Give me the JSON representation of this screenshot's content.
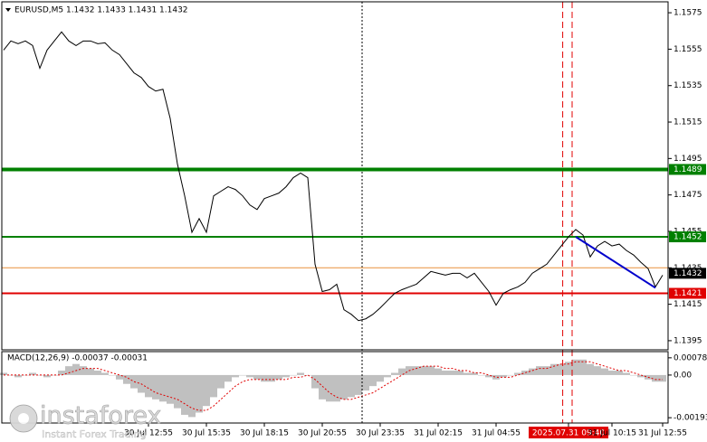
{
  "chart_data": {
    "type": "line",
    "header": "EURUSD,M5  1.1432 1.1433 1.1431 1.1432",
    "categories": [
      null,
      null,
      null,
      null,
      null,
      null,
      null,
      null,
      null,
      null,
      null,
      null,
      null,
      null,
      null,
      null,
      null,
      null,
      null,
      null,
      "30 Jul 12:55",
      null,
      null,
      null,
      null,
      null,
      null,
      null,
      "30 Jul 15:35",
      null,
      null,
      null,
      null,
      null,
      null,
      null,
      "30 Jul 18:15",
      null,
      null,
      null,
      null,
      null,
      null,
      null,
      "30 Jul 20:55",
      null,
      null,
      null,
      null,
      null,
      null,
      null,
      "30 Jul 23:35",
      null,
      null,
      null,
      null,
      null,
      null,
      null,
      "31 Jul 02:15",
      null,
      null,
      null,
      null,
      null,
      null,
      null,
      "31 Jul 04:55",
      null,
      null,
      null,
      null,
      null,
      null,
      null,
      null,
      null,
      "2025.07.31 09:40",
      null,
      null,
      null,
      null,
      null,
      "31 Jul 10:15",
      null,
      null,
      null,
      null,
      null,
      null,
      "31 Jul 12:55"
    ],
    "series": [
      {
        "name": "EURUSD,M5",
        "color": "#000000",
        "values": [
          1.15545,
          1.15595,
          1.1558,
          1.15595,
          1.1557,
          1.15445,
          1.15545,
          1.15595,
          1.15645,
          1.15595,
          1.1557,
          1.15595,
          1.15595,
          1.1558,
          1.15585,
          1.15545,
          1.1552,
          1.1547,
          1.1542,
          1.15395,
          1.15345,
          1.1532,
          1.1533,
          1.1517,
          1.1492,
          1.14745,
          1.14545,
          1.1462,
          1.14545,
          1.14745,
          1.1477,
          1.14795,
          1.1478,
          1.14745,
          1.14695,
          1.1467,
          1.1473,
          1.14745,
          1.1476,
          1.14795,
          1.14845,
          1.1487,
          1.14845,
          1.1437,
          1.1422,
          1.1423,
          1.1426,
          1.1412,
          1.14095,
          1.1406,
          1.1407,
          1.14095,
          1.1413,
          1.1417,
          1.1421,
          1.1423,
          1.14245,
          1.1426,
          1.14295,
          1.1433,
          1.1432,
          1.1431,
          1.1432,
          1.1432,
          1.14295,
          1.1432,
          1.1427,
          1.1422,
          1.14145,
          1.1421,
          1.1423,
          1.14245,
          1.1427,
          1.1432,
          1.14345,
          1.1437,
          1.1442,
          1.1447,
          1.1452,
          1.1456,
          1.1453,
          1.1441,
          1.1447,
          1.14495,
          1.1447,
          1.1448,
          1.14445,
          1.1442,
          1.1438,
          1.14345,
          1.14245,
          1.1431
        ]
      }
    ],
    "ylim": [
      1.139,
      1.1581
    ],
    "yticks": [
      1.1575,
      1.1555,
      1.1535,
      1.1515,
      1.1495,
      1.1475,
      1.1455,
      1.1435,
      1.1415,
      1.1395
    ],
    "levels": [
      {
        "value": 1.1435,
        "color": "#e8903a",
        "width": 1
      },
      {
        "value": 1.1489,
        "color": "#008000",
        "width": 4,
        "label": "1.1489"
      },
      {
        "value": 1.1452,
        "color": "#008000",
        "width": 2,
        "label": "1.1452"
      },
      {
        "value": 1.1421,
        "color": "#e00000",
        "width": 2,
        "label": "1.1421"
      },
      {
        "value": 1.1432,
        "color": "#000000",
        "width": 0,
        "label": "1.1432"
      }
    ],
    "trendline": {
      "color": "#0000cc",
      "x": [
        79,
        90
      ],
      "values": [
        1.1452,
        1.1424
      ]
    },
    "vlines": [
      {
        "x": 49.5,
        "color": "#000000",
        "style": "dotted"
      },
      {
        "x": 77.2,
        "color": "#e00000",
        "style": "dashed"
      },
      {
        "x": 78.5,
        "color": "#e00000",
        "style": "dashed"
      }
    ],
    "macd": {
      "label": "MACD(12,26,9) -0.00037 -0.00031",
      "ylim": [
        -0.00217,
        0.00106
      ],
      "yticks": [
        0.00078,
        {
          "value": 0,
          "label": "0.00"
        },
        -0.00193
      ],
      "histogram": {
        "color": "#c0c0c0",
        "values": [
          0.0001,
          0,
          -0.0001,
          0,
          0.0001,
          0,
          -0.0001,
          0,
          0.0002,
          0.0004,
          0.0005,
          0.0004,
          0.0003,
          0.0002,
          0.0001,
          0,
          -0.0002,
          -0.0004,
          -0.0006,
          -0.0008,
          -0.001,
          -0.0011,
          -0.0012,
          -0.0013,
          -0.0015,
          -0.0018,
          -0.0019,
          -0.0017,
          -0.0014,
          -0.001,
          -0.0006,
          -0.0003,
          -0.0001,
          0,
          -0.0001,
          -0.0002,
          -0.0003,
          -0.0003,
          -0.0002,
          -0.0001,
          0,
          0.0001,
          0,
          -0.0006,
          -0.0011,
          -0.0012,
          -0.0012,
          -0.0011,
          -0.001,
          -0.0009,
          -0.0007,
          -0.0005,
          -0.0003,
          -0.0001,
          0.0001,
          0.0003,
          0.0004,
          0.0004,
          0.0004,
          0.0004,
          0.0003,
          0.0002,
          0.0002,
          0.0002,
          0.0001,
          0.0001,
          0,
          -0.0001,
          -0.0002,
          -0.0001,
          0,
          0.0001,
          0.0002,
          0.0003,
          0.0004,
          0.0004,
          0.0005,
          0.0005,
          0.0006,
          0.0007,
          0.0007,
          0.0005,
          0.0004,
          0.0003,
          0.0002,
          0.0002,
          0.0001,
          0,
          -0.0001,
          -0.0002,
          -0.0003,
          -0.0003
        ]
      },
      "signal": {
        "color": "#e00000",
        "values": [
          0,
          0,
          0,
          0,
          0,
          0,
          0,
          0,
          0,
          0.0001,
          0.0002,
          0.0003,
          0.0003,
          0.0003,
          0.0002,
          0.0001,
          0,
          -0.0001,
          -0.0003,
          -0.0004,
          -0.0006,
          -0.0008,
          -0.0009,
          -0.001,
          -0.0011,
          -0.0013,
          -0.0015,
          -0.0016,
          -0.0016,
          -0.0014,
          -0.0011,
          -0.0008,
          -0.0005,
          -0.0003,
          -0.0002,
          -0.0002,
          -0.0002,
          -0.0002,
          -0.0002,
          -0.0002,
          -0.0001,
          -0.0001,
          0,
          -0.0002,
          -0.0005,
          -0.0008,
          -0.001,
          -0.0011,
          -0.0011,
          -0.001,
          -0.0009,
          -0.0008,
          -0.0006,
          -0.0004,
          -0.0002,
          0,
          0.0002,
          0.0003,
          0.0004,
          0.0004,
          0.0004,
          0.0003,
          0.0003,
          0.0002,
          0.0002,
          0.0001,
          0.0001,
          0,
          -0.0001,
          -0.0001,
          -0.0001,
          0,
          0.0001,
          0.0002,
          0.0003,
          0.0003,
          0.0004,
          0.0005,
          0.0005,
          0.0006,
          0.0006,
          0.0006,
          0.0005,
          0.0004,
          0.0003,
          0.0002,
          0.0002,
          0.0001,
          0,
          -0.0001,
          -0.0002,
          -0.0002
        ]
      }
    },
    "watermark": {
      "brand": "instaforex",
      "tagline": "Instant Forex Trading"
    }
  }
}
